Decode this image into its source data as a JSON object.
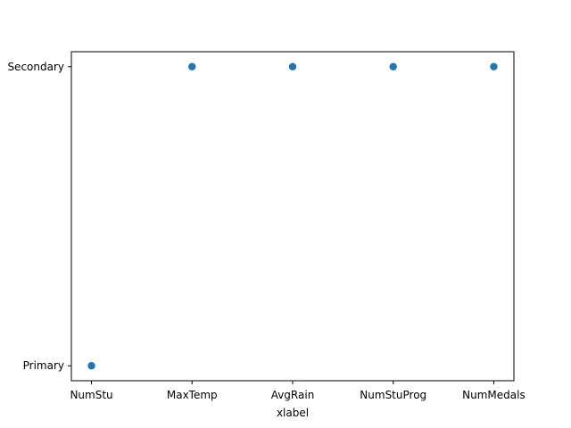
{
  "chart_data": {
    "type": "scatter",
    "title": "",
    "xlabel": "xlabel",
    "ylabel": "",
    "x_categories": [
      "NumStu",
      "MaxTemp",
      "AvgRain",
      "NumStuProg",
      "NumMedals"
    ],
    "y_categories": [
      "Primary",
      "Secondary"
    ],
    "points": [
      {
        "x": "NumStu",
        "y": "Primary"
      },
      {
        "x": "MaxTemp",
        "y": "Secondary"
      },
      {
        "x": "AvgRain",
        "y": "Secondary"
      },
      {
        "x": "NumStuProg",
        "y": "Secondary"
      },
      {
        "x": "NumMedals",
        "y": "Secondary"
      }
    ],
    "marker_color": "#1f77b4",
    "grid": false,
    "legend": "none"
  }
}
